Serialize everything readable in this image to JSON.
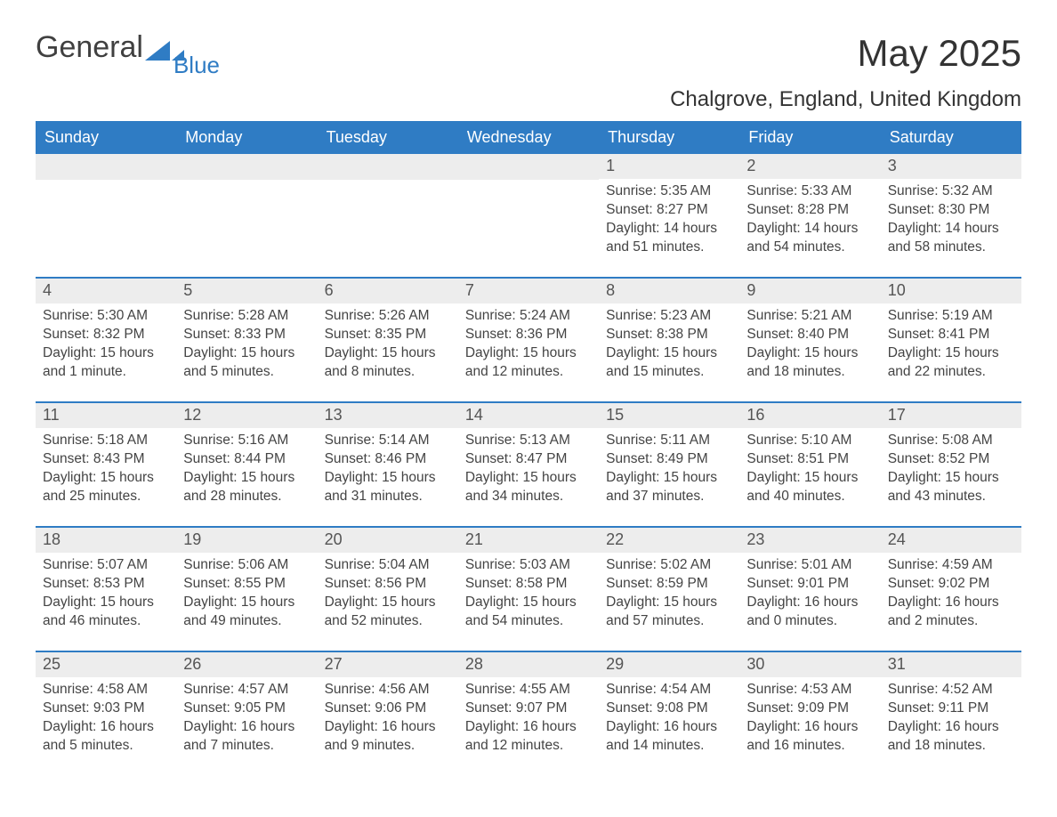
{
  "logo": {
    "text1": "General",
    "text2": "Blue"
  },
  "title": "May 2025",
  "subtitle": "Chalgrove, England, United Kingdom",
  "colors": {
    "brand_blue": "#2f7cc4",
    "header_bg": "#2f7cc4",
    "header_text": "#ffffff",
    "daynum_bg": "#ededed",
    "body_text": "#444444",
    "page_bg": "#ffffff"
  },
  "day_labels": [
    "Sunday",
    "Monday",
    "Tuesday",
    "Wednesday",
    "Thursday",
    "Friday",
    "Saturday"
  ],
  "weeks": [
    [
      {
        "n": "",
        "sr": "",
        "ss": "",
        "dl": ""
      },
      {
        "n": "",
        "sr": "",
        "ss": "",
        "dl": ""
      },
      {
        "n": "",
        "sr": "",
        "ss": "",
        "dl": ""
      },
      {
        "n": "",
        "sr": "",
        "ss": "",
        "dl": ""
      },
      {
        "n": "1",
        "sr": "Sunrise: 5:35 AM",
        "ss": "Sunset: 8:27 PM",
        "dl": "Daylight: 14 hours and 51 minutes."
      },
      {
        "n": "2",
        "sr": "Sunrise: 5:33 AM",
        "ss": "Sunset: 8:28 PM",
        "dl": "Daylight: 14 hours and 54 minutes."
      },
      {
        "n": "3",
        "sr": "Sunrise: 5:32 AM",
        "ss": "Sunset: 8:30 PM",
        "dl": "Daylight: 14 hours and 58 minutes."
      }
    ],
    [
      {
        "n": "4",
        "sr": "Sunrise: 5:30 AM",
        "ss": "Sunset: 8:32 PM",
        "dl": "Daylight: 15 hours and 1 minute."
      },
      {
        "n": "5",
        "sr": "Sunrise: 5:28 AM",
        "ss": "Sunset: 8:33 PM",
        "dl": "Daylight: 15 hours and 5 minutes."
      },
      {
        "n": "6",
        "sr": "Sunrise: 5:26 AM",
        "ss": "Sunset: 8:35 PM",
        "dl": "Daylight: 15 hours and 8 minutes."
      },
      {
        "n": "7",
        "sr": "Sunrise: 5:24 AM",
        "ss": "Sunset: 8:36 PM",
        "dl": "Daylight: 15 hours and 12 minutes."
      },
      {
        "n": "8",
        "sr": "Sunrise: 5:23 AM",
        "ss": "Sunset: 8:38 PM",
        "dl": "Daylight: 15 hours and 15 minutes."
      },
      {
        "n": "9",
        "sr": "Sunrise: 5:21 AM",
        "ss": "Sunset: 8:40 PM",
        "dl": "Daylight: 15 hours and 18 minutes."
      },
      {
        "n": "10",
        "sr": "Sunrise: 5:19 AM",
        "ss": "Sunset: 8:41 PM",
        "dl": "Daylight: 15 hours and 22 minutes."
      }
    ],
    [
      {
        "n": "11",
        "sr": "Sunrise: 5:18 AM",
        "ss": "Sunset: 8:43 PM",
        "dl": "Daylight: 15 hours and 25 minutes."
      },
      {
        "n": "12",
        "sr": "Sunrise: 5:16 AM",
        "ss": "Sunset: 8:44 PM",
        "dl": "Daylight: 15 hours and 28 minutes."
      },
      {
        "n": "13",
        "sr": "Sunrise: 5:14 AM",
        "ss": "Sunset: 8:46 PM",
        "dl": "Daylight: 15 hours and 31 minutes."
      },
      {
        "n": "14",
        "sr": "Sunrise: 5:13 AM",
        "ss": "Sunset: 8:47 PM",
        "dl": "Daylight: 15 hours and 34 minutes."
      },
      {
        "n": "15",
        "sr": "Sunrise: 5:11 AM",
        "ss": "Sunset: 8:49 PM",
        "dl": "Daylight: 15 hours and 37 minutes."
      },
      {
        "n": "16",
        "sr": "Sunrise: 5:10 AM",
        "ss": "Sunset: 8:51 PM",
        "dl": "Daylight: 15 hours and 40 minutes."
      },
      {
        "n": "17",
        "sr": "Sunrise: 5:08 AM",
        "ss": "Sunset: 8:52 PM",
        "dl": "Daylight: 15 hours and 43 minutes."
      }
    ],
    [
      {
        "n": "18",
        "sr": "Sunrise: 5:07 AM",
        "ss": "Sunset: 8:53 PM",
        "dl": "Daylight: 15 hours and 46 minutes."
      },
      {
        "n": "19",
        "sr": "Sunrise: 5:06 AM",
        "ss": "Sunset: 8:55 PM",
        "dl": "Daylight: 15 hours and 49 minutes."
      },
      {
        "n": "20",
        "sr": "Sunrise: 5:04 AM",
        "ss": "Sunset: 8:56 PM",
        "dl": "Daylight: 15 hours and 52 minutes."
      },
      {
        "n": "21",
        "sr": "Sunrise: 5:03 AM",
        "ss": "Sunset: 8:58 PM",
        "dl": "Daylight: 15 hours and 54 minutes."
      },
      {
        "n": "22",
        "sr": "Sunrise: 5:02 AM",
        "ss": "Sunset: 8:59 PM",
        "dl": "Daylight: 15 hours and 57 minutes."
      },
      {
        "n": "23",
        "sr": "Sunrise: 5:01 AM",
        "ss": "Sunset: 9:01 PM",
        "dl": "Daylight: 16 hours and 0 minutes."
      },
      {
        "n": "24",
        "sr": "Sunrise: 4:59 AM",
        "ss": "Sunset: 9:02 PM",
        "dl": "Daylight: 16 hours and 2 minutes."
      }
    ],
    [
      {
        "n": "25",
        "sr": "Sunrise: 4:58 AM",
        "ss": "Sunset: 9:03 PM",
        "dl": "Daylight: 16 hours and 5 minutes."
      },
      {
        "n": "26",
        "sr": "Sunrise: 4:57 AM",
        "ss": "Sunset: 9:05 PM",
        "dl": "Daylight: 16 hours and 7 minutes."
      },
      {
        "n": "27",
        "sr": "Sunrise: 4:56 AM",
        "ss": "Sunset: 9:06 PM",
        "dl": "Daylight: 16 hours and 9 minutes."
      },
      {
        "n": "28",
        "sr": "Sunrise: 4:55 AM",
        "ss": "Sunset: 9:07 PM",
        "dl": "Daylight: 16 hours and 12 minutes."
      },
      {
        "n": "29",
        "sr": "Sunrise: 4:54 AM",
        "ss": "Sunset: 9:08 PM",
        "dl": "Daylight: 16 hours and 14 minutes."
      },
      {
        "n": "30",
        "sr": "Sunrise: 4:53 AM",
        "ss": "Sunset: 9:09 PM",
        "dl": "Daylight: 16 hours and 16 minutes."
      },
      {
        "n": "31",
        "sr": "Sunrise: 4:52 AM",
        "ss": "Sunset: 9:11 PM",
        "dl": "Daylight: 16 hours and 18 minutes."
      }
    ]
  ]
}
